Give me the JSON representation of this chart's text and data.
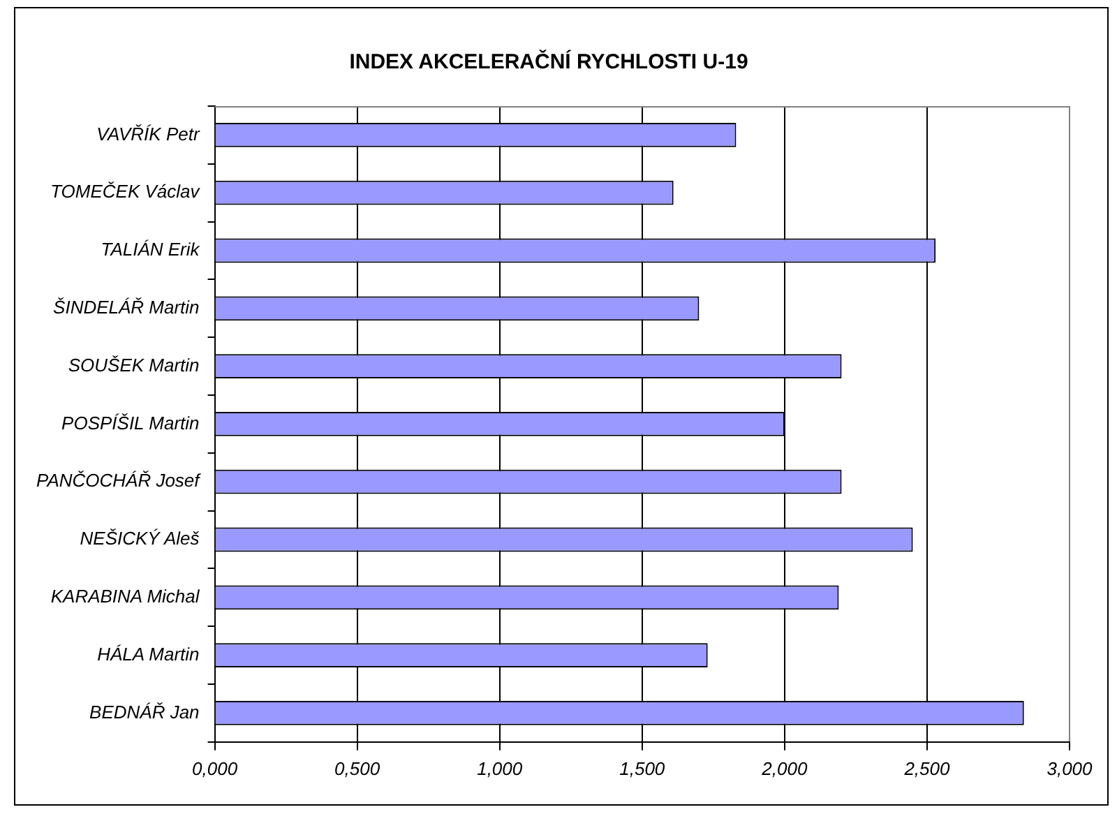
{
  "chart_data": {
    "type": "bar",
    "orientation": "horizontal",
    "title": "INDEX AKCELERAČNÍ RYCHLOSTI U-19",
    "categories": [
      "VAVŘÍK Petr",
      "TOMEČEK Václav",
      "TALIÁN Erik",
      "ŠINDELÁŘ Martin",
      "SOUŠEK Martin",
      "POSPÍŠIL Martin",
      "PANČOCHÁŘ Josef",
      "NEŠICKÝ Aleš",
      "KARABINA Michal",
      "HÁLA Martin",
      "BEDNÁŘ Jan"
    ],
    "values": [
      1.83,
      1.61,
      2.53,
      1.7,
      2.2,
      2.0,
      2.2,
      2.45,
      2.19,
      1.73,
      2.84
    ],
    "color": "#9999ff",
    "xlim": [
      0,
      3
    ],
    "xticks": [
      {
        "value": 0,
        "label": "0,000"
      },
      {
        "value": 0.5,
        "label": "0,500"
      },
      {
        "value": 1,
        "label": "1,000"
      },
      {
        "value": 1.5,
        "label": "1,500"
      },
      {
        "value": 2,
        "label": "2,000"
      },
      {
        "value": 2.5,
        "label": "2,500"
      },
      {
        "value": 3,
        "label": "3,000"
      }
    ],
    "grid": "x",
    "legend": false
  }
}
